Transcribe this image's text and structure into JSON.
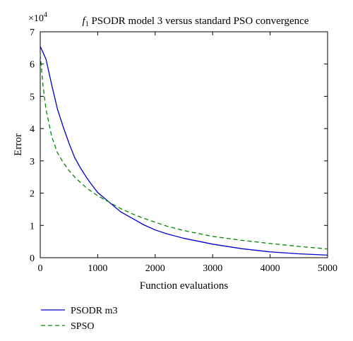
{
  "chart_data": {
    "type": "line",
    "title_italic": "f",
    "title_sub": "1",
    "title_rest": " PSODR model 3 versus standard PSO convergence",
    "xlabel": "Function evaluations",
    "ylabel": "Error",
    "y_multiplier_base": "×10",
    "y_multiplier_exp": "4",
    "xlim": [
      0,
      5000
    ],
    "ylim": [
      0,
      7
    ],
    "xticks": [
      0,
      1000,
      2000,
      3000,
      4000,
      5000
    ],
    "yticks": [
      0,
      1,
      2,
      3,
      4,
      5,
      6,
      7
    ],
    "series": [
      {
        "name": "PSODR m3",
        "color": "#0000cc",
        "dash": "solid",
        "x": [
          0,
          100,
          200,
          300,
          400,
          500,
          600,
          700,
          800,
          900,
          1000,
          1200,
          1400,
          1600,
          1800,
          2000,
          2200,
          2500,
          3000,
          3500,
          4000,
          4500,
          5000
        ],
        "y": [
          6.55,
          6.15,
          5.35,
          4.6,
          4.05,
          3.55,
          3.1,
          2.78,
          2.5,
          2.25,
          2.02,
          1.72,
          1.42,
          1.22,
          1.02,
          0.86,
          0.74,
          0.6,
          0.42,
          0.28,
          0.18,
          0.12,
          0.08
        ]
      },
      {
        "name": "SPSO",
        "color": "#008800",
        "dash": "dashed",
        "x": [
          0,
          50,
          100,
          200,
          300,
          400,
          500,
          600,
          700,
          800,
          900,
          1000,
          1200,
          1400,
          1600,
          1800,
          2000,
          2200,
          2500,
          3000,
          3500,
          4000,
          4500,
          5000
        ],
        "y": [
          6.3,
          5.3,
          4.6,
          3.75,
          3.25,
          2.95,
          2.7,
          2.5,
          2.33,
          2.17,
          2.04,
          1.92,
          1.72,
          1.52,
          1.36,
          1.22,
          1.1,
          0.98,
          0.84,
          0.66,
          0.54,
          0.44,
          0.35,
          0.27
        ]
      }
    ]
  }
}
